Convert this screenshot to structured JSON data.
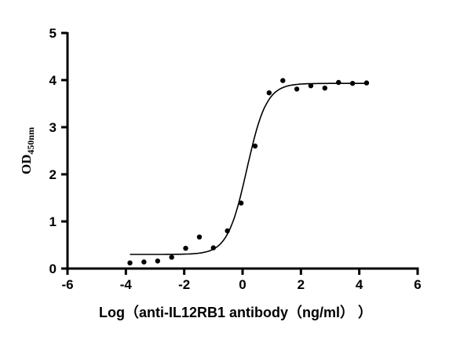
{
  "chart_data": {
    "type": "scatter",
    "title": "",
    "xlabel": "Log（anti-IL12RB1 antibody（ng/ml） ）",
    "ylabel_main": "OD",
    "ylabel_sub": "450nm",
    "xlim": [
      -6,
      6
    ],
    "ylim": [
      0,
      5
    ],
    "xticks": [
      -6,
      -4,
      -2,
      0,
      2,
      4,
      6
    ],
    "yticks": [
      0,
      1,
      2,
      3,
      4,
      5
    ],
    "grid": false,
    "color": "#000000",
    "points": {
      "x": [
        -3.86,
        -3.38,
        -2.91,
        -2.43,
        -1.95,
        -1.48,
        -1.0,
        -0.52,
        -0.05,
        0.43,
        0.91,
        1.38,
        1.86,
        2.34,
        2.82,
        3.29,
        3.77,
        4.25
      ],
      "y": [
        0.12,
        0.14,
        0.16,
        0.24,
        0.43,
        0.67,
        0.44,
        0.8,
        1.39,
        2.6,
        3.73,
        3.99,
        3.81,
        3.88,
        3.83,
        3.95,
        3.93,
        3.94
      ]
    },
    "fit": {
      "model": "4PL",
      "bottom": 0.3,
      "top": 3.93,
      "logEC50": 0.15,
      "hill": 1.3,
      "x_range": [
        -3.86,
        4.25
      ]
    }
  }
}
